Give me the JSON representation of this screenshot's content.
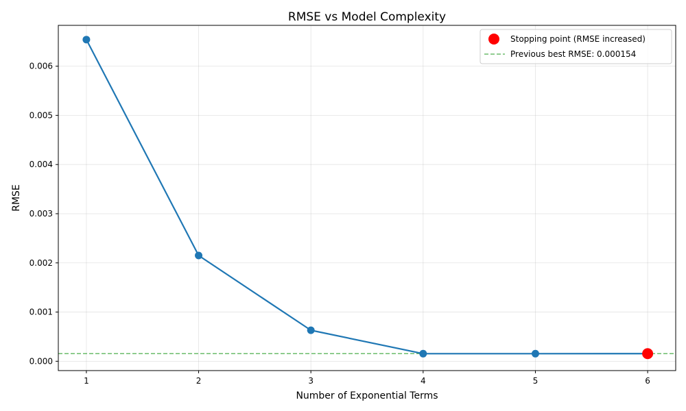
{
  "chart_data": {
    "type": "line",
    "title": "RMSE vs Model Complexity",
    "xlabel": "Number of Exponential Terms",
    "ylabel": "RMSE",
    "x": [
      1,
      2,
      3,
      4,
      5,
      6
    ],
    "xticks": [
      "1",
      "2",
      "3",
      "4",
      "5",
      "6"
    ],
    "xlim": [
      0.75,
      6.25
    ],
    "yticks": [
      "0.000",
      "0.001",
      "0.002",
      "0.003",
      "0.004",
      "0.005",
      "0.006"
    ],
    "ylim": [
      -0.00019,
      0.00683
    ],
    "series": [
      {
        "values": [
          0.00654,
          0.00215,
          0.00063,
          0.000154,
          0.000154,
          0.000155
        ],
        "color": "#1f77b4"
      }
    ],
    "stopping_point": {
      "label": "Stopping point (RMSE increased)",
      "x": 6,
      "y": 0.000155,
      "color": "#ff0000"
    },
    "reference_line": {
      "label": "Previous best RMSE: 0.000154",
      "y": 0.000154,
      "color": "#2ca02c",
      "style": "dashed"
    },
    "grid": true,
    "legend_position": "top-right"
  }
}
